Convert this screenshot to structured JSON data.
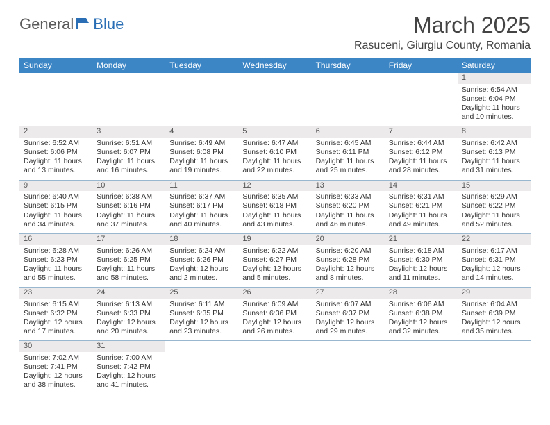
{
  "logo": {
    "text1": "General",
    "text2": "Blue"
  },
  "title": "March 2025",
  "subtitle": "Rasuceni, Giurgiu County, Romania",
  "colors": {
    "header_bg": "#3d86c6",
    "header_fg": "#ffffff",
    "row_divider": "#9ab7d0",
    "daynum_bg": "#eceaea",
    "logo_gray": "#5a5a5a",
    "logo_blue": "#2a6fb5"
  },
  "table": {
    "columns": [
      "Sunday",
      "Monday",
      "Tuesday",
      "Wednesday",
      "Thursday",
      "Friday",
      "Saturday"
    ],
    "weeks": [
      [
        null,
        null,
        null,
        null,
        null,
        null,
        {
          "d": "1",
          "sr": "6:54 AM",
          "ss": "6:04 PM",
          "dl": "11 hours and 10 minutes."
        }
      ],
      [
        {
          "d": "2",
          "sr": "6:52 AM",
          "ss": "6:06 PM",
          "dl": "11 hours and 13 minutes."
        },
        {
          "d": "3",
          "sr": "6:51 AM",
          "ss": "6:07 PM",
          "dl": "11 hours and 16 minutes."
        },
        {
          "d": "4",
          "sr": "6:49 AM",
          "ss": "6:08 PM",
          "dl": "11 hours and 19 minutes."
        },
        {
          "d": "5",
          "sr": "6:47 AM",
          "ss": "6:10 PM",
          "dl": "11 hours and 22 minutes."
        },
        {
          "d": "6",
          "sr": "6:45 AM",
          "ss": "6:11 PM",
          "dl": "11 hours and 25 minutes."
        },
        {
          "d": "7",
          "sr": "6:44 AM",
          "ss": "6:12 PM",
          "dl": "11 hours and 28 minutes."
        },
        {
          "d": "8",
          "sr": "6:42 AM",
          "ss": "6:13 PM",
          "dl": "11 hours and 31 minutes."
        }
      ],
      [
        {
          "d": "9",
          "sr": "6:40 AM",
          "ss": "6:15 PM",
          "dl": "11 hours and 34 minutes."
        },
        {
          "d": "10",
          "sr": "6:38 AM",
          "ss": "6:16 PM",
          "dl": "11 hours and 37 minutes."
        },
        {
          "d": "11",
          "sr": "6:37 AM",
          "ss": "6:17 PM",
          "dl": "11 hours and 40 minutes."
        },
        {
          "d": "12",
          "sr": "6:35 AM",
          "ss": "6:18 PM",
          "dl": "11 hours and 43 minutes."
        },
        {
          "d": "13",
          "sr": "6:33 AM",
          "ss": "6:20 PM",
          "dl": "11 hours and 46 minutes."
        },
        {
          "d": "14",
          "sr": "6:31 AM",
          "ss": "6:21 PM",
          "dl": "11 hours and 49 minutes."
        },
        {
          "d": "15",
          "sr": "6:29 AM",
          "ss": "6:22 PM",
          "dl": "11 hours and 52 minutes."
        }
      ],
      [
        {
          "d": "16",
          "sr": "6:28 AM",
          "ss": "6:23 PM",
          "dl": "11 hours and 55 minutes."
        },
        {
          "d": "17",
          "sr": "6:26 AM",
          "ss": "6:25 PM",
          "dl": "11 hours and 58 minutes."
        },
        {
          "d": "18",
          "sr": "6:24 AM",
          "ss": "6:26 PM",
          "dl": "12 hours and 2 minutes."
        },
        {
          "d": "19",
          "sr": "6:22 AM",
          "ss": "6:27 PM",
          "dl": "12 hours and 5 minutes."
        },
        {
          "d": "20",
          "sr": "6:20 AM",
          "ss": "6:28 PM",
          "dl": "12 hours and 8 minutes."
        },
        {
          "d": "21",
          "sr": "6:18 AM",
          "ss": "6:30 PM",
          "dl": "12 hours and 11 minutes."
        },
        {
          "d": "22",
          "sr": "6:17 AM",
          "ss": "6:31 PM",
          "dl": "12 hours and 14 minutes."
        }
      ],
      [
        {
          "d": "23",
          "sr": "6:15 AM",
          "ss": "6:32 PM",
          "dl": "12 hours and 17 minutes."
        },
        {
          "d": "24",
          "sr": "6:13 AM",
          "ss": "6:33 PM",
          "dl": "12 hours and 20 minutes."
        },
        {
          "d": "25",
          "sr": "6:11 AM",
          "ss": "6:35 PM",
          "dl": "12 hours and 23 minutes."
        },
        {
          "d": "26",
          "sr": "6:09 AM",
          "ss": "6:36 PM",
          "dl": "12 hours and 26 minutes."
        },
        {
          "d": "27",
          "sr": "6:07 AM",
          "ss": "6:37 PM",
          "dl": "12 hours and 29 minutes."
        },
        {
          "d": "28",
          "sr": "6:06 AM",
          "ss": "6:38 PM",
          "dl": "12 hours and 32 minutes."
        },
        {
          "d": "29",
          "sr": "6:04 AM",
          "ss": "6:39 PM",
          "dl": "12 hours and 35 minutes."
        }
      ],
      [
        {
          "d": "30",
          "sr": "7:02 AM",
          "ss": "7:41 PM",
          "dl": "12 hours and 38 minutes."
        },
        {
          "d": "31",
          "sr": "7:00 AM",
          "ss": "7:42 PM",
          "dl": "12 hours and 41 minutes."
        },
        null,
        null,
        null,
        null,
        null
      ]
    ],
    "labels": {
      "sunrise": "Sunrise:",
      "sunset": "Sunset:",
      "daylight": "Daylight:"
    }
  }
}
